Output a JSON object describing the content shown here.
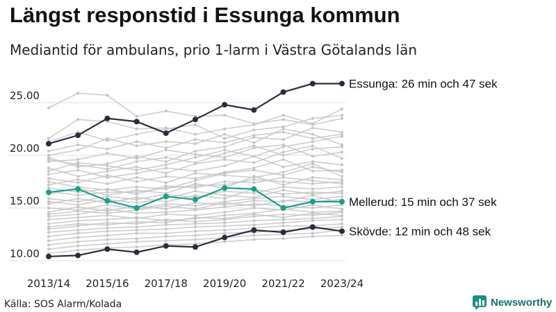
{
  "title": "Längst responstid i Essunga kommun",
  "subtitle": "Mediantid för ambulans, prio 1-larm i Västra Götalands län",
  "source": "Källa: SOS Alarm/Kolada",
  "brand": {
    "name": "Newsworthy",
    "icon": "bar-chart-logo-icon"
  },
  "colors": {
    "background_lines": "#c4c4c4",
    "highlight_dark": "#2b2b3d",
    "highlight_green": "#1a9e8c",
    "grid": "#e2e2e2"
  },
  "chart_data": {
    "type": "line",
    "x": [
      "2013/14",
      "2014/15",
      "2015/16",
      "2016/17",
      "2017/18",
      "2018/19",
      "2019/20",
      "2020/21",
      "2021/22",
      "2022/23",
      "2023/24"
    ],
    "x_tick_labels": [
      "2013/14",
      "2015/16",
      "2017/18",
      "2019/20",
      "2021/22",
      "2023/24"
    ],
    "y_ticks": [
      "10.00",
      "15.00",
      "20.00",
      "25.00"
    ],
    "ylim": [
      10,
      27.5
    ],
    "grid": true,
    "highlighted_series": [
      {
        "label": "Essunga: 26 min och 47 sek",
        "color": "#2b2b3d",
        "values": [
          21.1,
          21.9,
          23.5,
          23.2,
          22.1,
          23.4,
          24.8,
          24.3,
          26.0,
          26.8,
          26.8
        ]
      },
      {
        "label": "Mellerud: 15 min och 37 sek",
        "color": "#1a9e8c",
        "values": [
          16.5,
          16.8,
          15.7,
          15.0,
          16.1,
          15.8,
          16.9,
          16.8,
          15.0,
          15.6,
          15.6
        ]
      },
      {
        "label": "Skövde: 12 min och 48 sek",
        "color": "#2b2b3d",
        "values": [
          10.4,
          10.5,
          11.1,
          10.8,
          11.4,
          11.3,
          12.2,
          12.9,
          12.7,
          13.2,
          12.8
        ]
      }
    ],
    "background_series": [
      [
        24.5,
        25.9,
        25.7,
        23.7,
        24.2,
        23.7,
        23.8,
        23.0,
        23.4,
        22.9,
        23.5
      ],
      [
        21.6,
        23.4,
        23.2,
        22.5,
        22.6,
        22.0,
        22.5,
        22.9,
        23.8,
        23.0,
        24.4
      ],
      [
        21.3,
        22.2,
        21.4,
        22.0,
        22.5,
        22.9,
        21.6,
        22.4,
        22.7,
        23.5,
        23.8
      ],
      [
        20.0,
        20.5,
        21.6,
        20.9,
        21.3,
        21.1,
        22.0,
        21.2,
        22.5,
        22.0,
        21.0
      ],
      [
        19.8,
        18.9,
        19.2,
        19.9,
        19.4,
        20.4,
        20.8,
        21.7,
        21.5,
        22.6,
        22.2
      ],
      [
        19.4,
        19.6,
        20.2,
        19.7,
        20.5,
        20.1,
        19.8,
        20.7,
        21.0,
        19.9,
        20.3
      ],
      [
        18.8,
        18.0,
        18.5,
        18.9,
        18.3,
        19.2,
        19.6,
        19.3,
        20.3,
        20.9,
        19.7
      ],
      [
        18.2,
        18.6,
        17.9,
        18.3,
        18.8,
        18.5,
        19.0,
        19.9,
        18.9,
        19.4,
        19.1
      ],
      [
        17.8,
        17.4,
        18.1,
        17.5,
        18.0,
        17.8,
        18.4,
        18.8,
        19.6,
        18.5,
        18.6
      ],
      [
        17.2,
        17.7,
        17.3,
        17.9,
        17.4,
        18.3,
        18.1,
        17.9,
        18.4,
        19.2,
        18.0
      ],
      [
        16.9,
        16.5,
        16.8,
        16.3,
        17.1,
        16.9,
        17.5,
        17.4,
        17.9,
        17.6,
        17.3
      ],
      [
        16.3,
        16.9,
        16.2,
        16.7,
        16.4,
        17.3,
        16.9,
        18.0,
        17.2,
        17.9,
        17.7
      ],
      [
        15.9,
        15.6,
        16.1,
        15.8,
        16.3,
        16.0,
        16.6,
        16.4,
        17.0,
        16.8,
        17.0
      ],
      [
        15.4,
        15.9,
        15.5,
        16.0,
        15.6,
        16.2,
        15.9,
        16.8,
        16.3,
        16.5,
        16.4
      ],
      [
        15.0,
        14.8,
        15.3,
        14.9,
        15.4,
        15.2,
        15.6,
        15.9,
        16.1,
        15.8,
        16.1
      ],
      [
        14.6,
        15.1,
        14.7,
        15.2,
        14.9,
        15.5,
        15.3,
        15.7,
        15.6,
        16.2,
        15.5
      ],
      [
        14.2,
        14.4,
        14.9,
        14.5,
        14.6,
        14.8,
        15.1,
        15.4,
        15.2,
        15.0,
        15.3
      ],
      [
        13.9,
        14.1,
        14.3,
        14.0,
        14.4,
        14.3,
        14.6,
        15.0,
        14.8,
        15.3,
        14.9
      ],
      [
        13.5,
        13.8,
        13.9,
        14.1,
        13.8,
        14.0,
        14.3,
        14.5,
        14.9,
        14.6,
        14.7
      ],
      [
        13.0,
        13.3,
        13.6,
        13.5,
        13.9,
        13.7,
        13.9,
        14.2,
        14.4,
        14.3,
        14.6
      ],
      [
        12.7,
        12.9,
        13.1,
        13.2,
        13.4,
        13.5,
        13.6,
        13.8,
        13.9,
        14.0,
        14.2
      ],
      [
        12.3,
        12.6,
        12.8,
        12.9,
        13.0,
        13.2,
        13.3,
        13.4,
        13.6,
        13.8,
        13.9
      ],
      [
        11.9,
        12.2,
        12.4,
        12.6,
        12.6,
        12.8,
        12.9,
        13.1,
        13.3,
        13.3,
        13.5
      ],
      [
        11.5,
        11.8,
        12.0,
        12.1,
        12.3,
        12.4,
        12.6,
        12.7,
        12.9,
        13.0,
        13.2
      ],
      [
        11.1,
        11.4,
        11.6,
        11.8,
        11.9,
        12.0,
        12.2,
        12.4,
        12.5,
        12.6,
        12.9
      ],
      [
        10.7,
        11.0,
        11.2,
        11.3,
        11.5,
        11.6,
        11.8,
        12.0,
        12.1,
        12.3,
        12.4
      ],
      [
        18.5,
        19.3,
        19.0,
        18.6,
        19.1,
        19.8,
        20.5,
        19.9,
        20.8,
        21.3,
        21.8
      ],
      [
        17.5,
        17.0,
        16.7,
        17.0,
        16.8,
        17.6,
        18.3,
        18.6,
        18.1,
        18.9,
        18.4
      ],
      [
        19.6,
        19.1,
        18.7,
        19.4,
        19.8,
        19.3,
        20.2,
        20.9,
        20.0,
        20.6,
        20.8
      ],
      [
        15.6,
        15.3,
        15.8,
        15.5,
        15.9,
        16.6,
        16.2,
        16.0,
        16.7,
        16.3,
        16.6
      ],
      [
        14.4,
        14.7,
        14.5,
        14.8,
        15.2,
        14.9,
        15.5,
        15.2,
        15.7,
        15.6,
        15.8
      ],
      [
        16.6,
        16.2,
        16.5,
        16.5,
        16.9,
        17.1,
        17.2,
        17.7,
        17.5,
        17.3,
        17.5
      ],
      [
        20.4,
        21.0,
        20.6,
        21.3,
        20.7,
        21.5,
        21.2,
        21.9,
        22.2,
        21.6,
        22.0
      ],
      [
        13.2,
        13.5,
        13.4,
        13.7,
        13.6,
        14.1,
        14.0,
        14.4,
        14.1,
        14.5,
        14.3
      ]
    ]
  }
}
